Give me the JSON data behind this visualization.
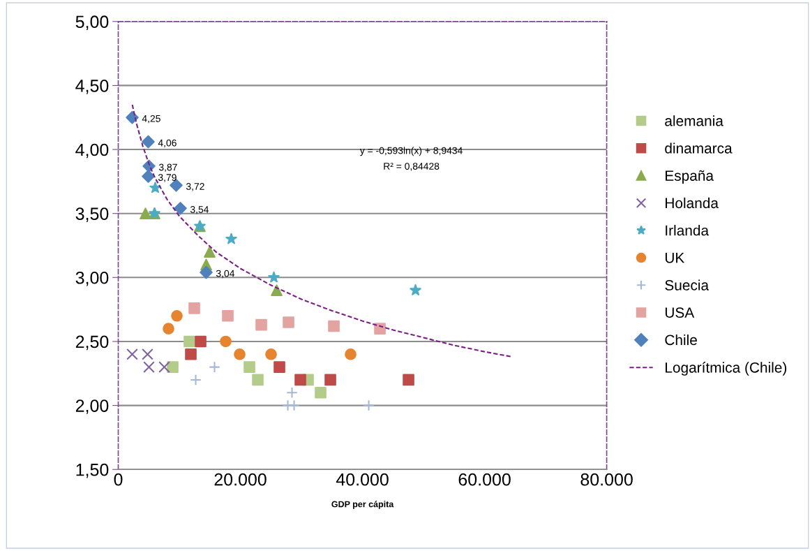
{
  "chart_data": {
    "type": "scatter",
    "xlabel": "GDP per cápita",
    "xlim": [
      0,
      80000
    ],
    "ylim": [
      1.5,
      5
    ],
    "xticks": [
      {
        "value": 0,
        "label": "0"
      },
      {
        "value": 20000,
        "label": "20.000"
      },
      {
        "value": 40000,
        "label": "40.000"
      },
      {
        "value": 60000,
        "label": "60.000"
      },
      {
        "value": 80000,
        "label": "80.000"
      }
    ],
    "yticks": [
      {
        "value": 1.5,
        "label": "1,50"
      },
      {
        "value": 2,
        "label": "2,00"
      },
      {
        "value": 2.5,
        "label": "2,50"
      },
      {
        "value": 3,
        "label": "3,00"
      },
      {
        "value": 3.5,
        "label": "3,50"
      },
      {
        "value": 4,
        "label": "4,00"
      },
      {
        "value": 4.5,
        "label": "4,50"
      },
      {
        "value": 5,
        "label": "5,00"
      }
    ],
    "grid": "y",
    "legend": "right",
    "annotations": [
      "y = -0,593ln(x) + 8,9434",
      "R² = 0,84428"
    ],
    "series": [
      {
        "name": "alemania",
        "color": "#b3cc8a",
        "marker": "square",
        "x": [
          11657,
          8914,
          21486,
          22857,
          31086,
          33143
        ],
        "values": [
          2.5,
          2.3,
          2.3,
          2.2,
          2.2,
          2.1
        ]
      },
      {
        "name": "dinamarca",
        "color": "#be4b48",
        "marker": "square",
        "x": [
          13486,
          11886,
          26400,
          29829,
          34743,
          47543
        ],
        "values": [
          2.5,
          2.4,
          2.3,
          2.2,
          2.2,
          2.2
        ]
      },
      {
        "name": "España",
        "color": "#8aab4e",
        "marker": "triangle",
        "x": [
          4457,
          5943,
          13371,
          14971,
          14400,
          25943
        ],
        "values": [
          3.5,
          3.5,
          3.4,
          3.2,
          3.1,
          2.9
        ]
      },
      {
        "name": "Holanda",
        "color": "#8064a2",
        "marker": "x",
        "x": [
          2286,
          4800,
          5029,
          7543
        ],
        "values": [
          2.4,
          2.4,
          2.3,
          2.3
        ]
      },
      {
        "name": "Irlanda",
        "color": "#4bacc6",
        "marker": "star",
        "x": [
          6057,
          5943,
          13371,
          18514,
          25486,
          48686
        ],
        "values": [
          3.7,
          3.5,
          3.4,
          3.3,
          3.0,
          2.9
        ]
      },
      {
        "name": "UK",
        "color": "#e6842f",
        "marker": "circle",
        "x": [
          8229,
          9600,
          17600,
          19886,
          25029,
          38057
        ],
        "values": [
          2.6,
          2.7,
          2.5,
          2.4,
          2.4,
          2.4
        ]
      },
      {
        "name": "Suecia",
        "color": "#a5b8da",
        "marker": "plus",
        "x": [
          12686,
          15771,
          28457,
          27771,
          28800,
          41029
        ],
        "values": [
          2.2,
          2.3,
          2.1,
          2.0,
          2.0,
          2.0
        ]
      },
      {
        "name": "USA",
        "color": "#e3a3a1",
        "marker": "square",
        "x": [
          12457,
          17943,
          23429,
          27886,
          35314,
          42857
        ],
        "values": [
          2.76,
          2.7,
          2.63,
          2.65,
          2.62,
          2.6
        ]
      },
      {
        "name": "Chile",
        "color": "#4f81bd",
        "marker": "diamond",
        "x": [
          2286,
          4914,
          5029,
          4914,
          9486,
          10171,
          14400
        ],
        "values": [
          4.25,
          4.06,
          3.87,
          3.79,
          3.72,
          3.54,
          3.04
        ],
        "value_labels": [
          "4,25",
          "4,06",
          "3,87",
          "3,79",
          "3,72",
          "3,54",
          "3,04"
        ]
      },
      {
        "name": "Logarítmica (Chile)",
        "type": "line",
        "color": "#7b1f87",
        "marker": "none",
        "line_style": "dashed",
        "x": [
          2300,
          3000,
          4000,
          5000,
          6000,
          8000,
          10000,
          13000,
          16000,
          20000,
          25000,
          30000,
          35000,
          40000,
          45000,
          50000,
          55000,
          60000,
          64500
        ],
        "values": [
          4.35,
          4.2,
          4.03,
          3.89,
          3.78,
          3.61,
          3.48,
          3.33,
          3.2,
          3.07,
          2.94,
          2.83,
          2.74,
          2.66,
          2.59,
          2.53,
          2.47,
          2.42,
          2.38
        ]
      }
    ]
  }
}
